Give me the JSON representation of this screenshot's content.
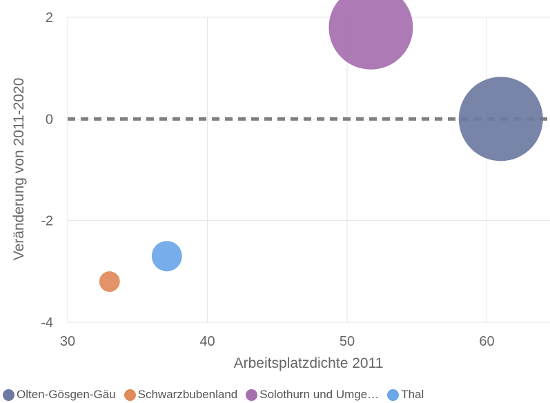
{
  "chart_data": {
    "type": "scatter",
    "subtype": "bubble",
    "xlabel": "Arbeitsplatzdichte 2011",
    "ylabel": "Veränderung von 2011-2020",
    "xlim": [
      30,
      65
    ],
    "ylim": [
      -4,
      2
    ],
    "x_ticks": [
      30,
      40,
      50,
      60
    ],
    "y_ticks": [
      -4,
      -2,
      0,
      2
    ],
    "grid": true,
    "reference_line": {
      "y": 0,
      "style": "dashed"
    },
    "legend_position": "bottom",
    "series": [
      {
        "name": "Olten-Gösgen-Gäu",
        "color": "#6e7aa2",
        "x": 61.0,
        "y": 0.0,
        "size": 1.0
      },
      {
        "name": "Schwarzbubenland",
        "color": "#e08a5a",
        "x": 33.0,
        "y": -3.2,
        "size": 0.06
      },
      {
        "name": "Solothurn und Umge…",
        "color": "#a66fb0",
        "x": 51.7,
        "y": 1.8,
        "size": 1.0
      },
      {
        "name": "Thal",
        "color": "#6aa6e8",
        "x": 37.1,
        "y": -2.7,
        "size": 0.13
      }
    ]
  }
}
